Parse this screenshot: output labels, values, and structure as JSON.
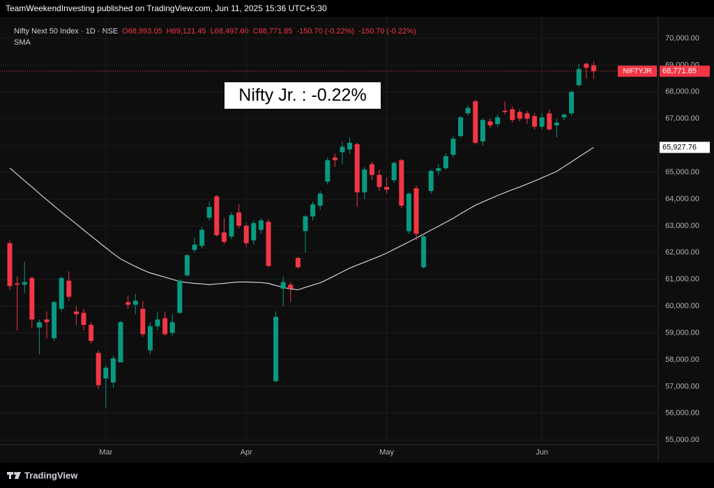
{
  "header": {
    "text": "TeamWeekendInvesting published on TradingView.com, Jun 11, 2025 15:36 UTC+5:30"
  },
  "footer": {
    "brand": "TradingView"
  },
  "chart_data": {
    "type": "candlestick",
    "title": "Nifty Next 50 Index · 1D · NSE",
    "last_labels": [
      "O68,993.05",
      "H69,121.45",
      "L68,497.60",
      "C68,771.85",
      "-150.70 (-0.22%)",
      "-150.70 (-0.22%)"
    ],
    "annotation": "Nifty Jr. : -0.22%",
    "symbol": "NIFTYJR",
    "close_label": "68,771.85",
    "sma_label": "65,927.76",
    "up_color": "#089981",
    "down_color": "#f23645",
    "grid": true,
    "categories": [
      null,
      null,
      null,
      null,
      null,
      null,
      null,
      null,
      null,
      null,
      null,
      null,
      null,
      "Mar",
      null,
      null,
      null,
      null,
      null,
      null,
      null,
      null,
      null,
      null,
      null,
      null,
      null,
      null,
      null,
      null,
      null,
      null,
      "Apr",
      null,
      null,
      null,
      null,
      null,
      null,
      null,
      null,
      null,
      null,
      null,
      null,
      null,
      null,
      null,
      null,
      null,
      null,
      "May",
      null,
      null,
      null,
      null,
      null,
      null,
      null,
      null,
      null,
      null,
      null,
      null,
      null,
      null,
      null,
      null,
      null,
      null,
      null,
      null,
      "Jun",
      null,
      null,
      null,
      null,
      null,
      null,
      null
    ],
    "open": [
      62350,
      60850,
      60800,
      61050,
      59200,
      59500,
      58800,
      59900,
      60950,
      59800,
      59750,
      59300,
      58250,
      57300,
      57150,
      57900,
      60150,
      60050,
      59900,
      58350,
      59250,
      59550,
      59000,
      59750,
      61150,
      62100,
      62250,
      63300,
      64100,
      62750,
      62600,
      63500,
      63000,
      62450,
      62850,
      63150,
      57200,
      60650,
      60800,
      61800,
      62800,
      63350,
      63750,
      64650,
      65550,
      65750,
      65850,
      66050,
      64250,
      65300,
      64900,
      64450,
      64700,
      65450,
      62800,
      64400,
      61450,
      64300,
      65050,
      65150,
      65650,
      66350,
      67200,
      67650,
      66150,
      66900,
      66800,
      67300,
      67350,
      67250,
      67200,
      67100,
      66700,
      67200,
      66750,
      67050,
      67200,
      68250,
      69050,
      68993.05
    ],
    "high": [
      62450,
      61100,
      61650,
      61100,
      59500,
      59800,
      60200,
      61100,
      61300,
      60000,
      59900,
      59400,
      58350,
      57800,
      58150,
      59450,
      60400,
      60450,
      60200,
      59400,
      59800,
      59800,
      59700,
      61000,
      61950,
      62550,
      62950,
      63900,
      64150,
      63300,
      63500,
      63800,
      63100,
      63200,
      63300,
      63250,
      59800,
      61100,
      60900,
      61850,
      63400,
      63900,
      64300,
      65550,
      65700,
      66150,
      66300,
      66100,
      65200,
      65400,
      65100,
      64800,
      65400,
      65500,
      64250,
      64500,
      62700,
      65100,
      65300,
      65700,
      66350,
      67100,
      67500,
      67700,
      67000,
      67000,
      67150,
      67650,
      67450,
      67350,
      67300,
      67200,
      67200,
      67350,
      67000,
      67200,
      68050,
      69050,
      69100,
      69121.45
    ],
    "low": [
      60600,
      59100,
      60500,
      59200,
      58200,
      58800,
      58700,
      59800,
      60200,
      59300,
      59100,
      58600,
      56900,
      56200,
      56950,
      57900,
      59900,
      59700,
      58850,
      58200,
      59100,
      58900,
      58900,
      59700,
      61100,
      62000,
      62150,
      63200,
      62600,
      62300,
      62500,
      62900,
      62200,
      62300,
      62700,
      61450,
      57150,
      60000,
      60150,
      61400,
      62000,
      63200,
      63600,
      64550,
      65200,
      65300,
      65700,
      63700,
      64000,
      64700,
      64300,
      64200,
      64600,
      63650,
      62700,
      62450,
      61400,
      64200,
      64900,
      65100,
      65550,
      66300,
      67100,
      66050,
      66000,
      66650,
      66700,
      67150,
      66850,
      66900,
      66800,
      66600,
      66600,
      66550,
      66300,
      66950,
      67100,
      68200,
      68500,
      68497.6
    ],
    "close": [
      60750,
      60800,
      60900,
      59500,
      59400,
      59400,
      60150,
      61050,
      60350,
      59700,
      59300,
      58700,
      57050,
      57700,
      58050,
      59400,
      60050,
      60200,
      58950,
      59250,
      59500,
      58950,
      59400,
      60950,
      61900,
      62300,
      62850,
      63700,
      62650,
      62400,
      63400,
      63000,
      62350,
      63100,
      63200,
      61500,
      59600,
      60900,
      60650,
      61450,
      63350,
      63800,
      64200,
      65450,
      65450,
      65950,
      66100,
      64250,
      65100,
      64900,
      64450,
      64350,
      65350,
      63750,
      64200,
      62700,
      62600,
      65050,
      65150,
      65600,
      66250,
      67050,
      67400,
      66100,
      66950,
      66750,
      67050,
      67250,
      66950,
      67000,
      67000,
      66700,
      67050,
      66600,
      66850,
      67150,
      68000,
      68850,
      68900,
      68771.85
    ],
    "series": [
      {
        "name": "SMA",
        "color": "#d1d4dc",
        "values": [
          65160,
          64920,
          64680,
          64450,
          64210,
          63970,
          63740,
          63510,
          63290,
          63070,
          62840,
          62620,
          62400,
          62180,
          61960,
          61760,
          61620,
          61480,
          61350,
          61240,
          61160,
          61080,
          61000,
          60920,
          60880,
          60850,
          60830,
          60800,
          60830,
          60850,
          60880,
          60900,
          60900,
          60890,
          60880,
          60850,
          60770,
          60700,
          60640,
          60610,
          60700,
          60790,
          60870,
          61000,
          61140,
          61280,
          61420,
          61530,
          61640,
          61750,
          61860,
          61980,
          62120,
          62260,
          62400,
          62540,
          62690,
          62840,
          62980,
          63130,
          63280,
          63450,
          63610,
          63770,
          63890,
          64010,
          64130,
          64240,
          64350,
          64450,
          64560,
          64670,
          64790,
          64910,
          65030,
          65210,
          65390,
          65570,
          65750,
          65927.76
        ]
      }
    ],
    "ylim": [
      54640,
      70520
    ],
    "yticks": [
      {
        "value": 55000,
        "label": "55,000.00"
      },
      {
        "value": 56000,
        "label": "56,000.00"
      },
      {
        "value": 57000,
        "label": "57,000.00"
      },
      {
        "value": 58000,
        "label": "58,000.00"
      },
      {
        "value": 59000,
        "label": "59,000.00"
      },
      {
        "value": 60000,
        "label": "60,000.00"
      },
      {
        "value": 61000,
        "label": "61,000.00"
      },
      {
        "value": 62000,
        "label": "62,000.00"
      },
      {
        "value": 63000,
        "label": "63,000.00"
      },
      {
        "value": 64000,
        "label": "64,000.00"
      },
      {
        "value": 65000,
        "label": "65,000.00"
      },
      {
        "value": 66000,
        "label": "66,000.00"
      },
      {
        "value": 67000,
        "label": "67,000.00"
      },
      {
        "value": 68000,
        "label": "68,000.00"
      },
      {
        "value": 69000,
        "label": "69,000.00"
      },
      {
        "value": 70000,
        "label": "70,000.00"
      }
    ]
  }
}
